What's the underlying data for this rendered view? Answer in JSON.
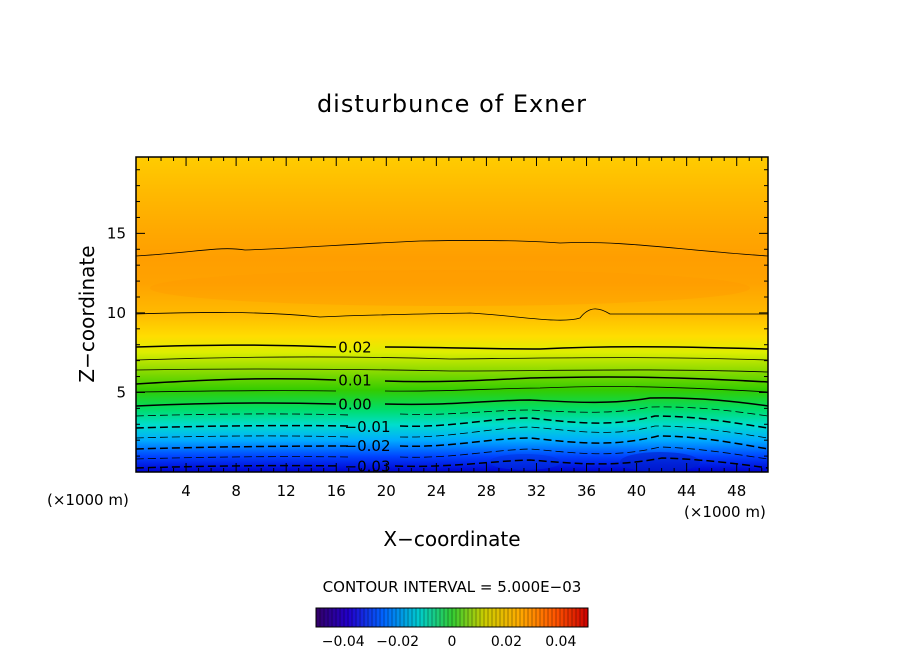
{
  "chart_data": {
    "type": "heatmap",
    "title": "disturbunce of Exner",
    "xlabel": "X−coordinate",
    "ylabel": "Z−coordinate",
    "x_unit_left": "(×1000 m)",
    "x_unit_right": "(×1000 m)",
    "xlim": [
      0,
      50.5
    ],
    "ylim": [
      0,
      19.8
    ],
    "x_ticks": [
      4,
      8,
      12,
      16,
      20,
      24,
      28,
      32,
      36,
      40,
      44,
      48
    ],
    "y_ticks": [
      5,
      10,
      15
    ],
    "contour_interval_label": "CONTOUR INTERVAL = 5.000E−03",
    "contour_labels": [
      {
        "text": "0.02",
        "x": 17.5,
        "z": 7.9
      },
      {
        "text": "0.01",
        "x": 17.5,
        "z": 5.8
      },
      {
        "text": "0.00",
        "x": 17.5,
        "z": 4.3
      },
      {
        "text": "−0.01",
        "x": 18.5,
        "z": 2.9
      },
      {
        "text": "−0.02",
        "x": 18.5,
        "z": 1.7
      },
      {
        "text": "−0.03",
        "x": 18.5,
        "z": 0.4
      }
    ],
    "colorbar": {
      "ticks": [
        "−0.04",
        "−0.02",
        "0",
        "0.02",
        "0.04"
      ],
      "range": [
        -0.05,
        0.05
      ]
    },
    "field_profile": {
      "z": [
        0,
        1,
        2,
        3,
        4,
        5,
        6,
        7,
        8,
        9,
        10,
        11,
        12,
        13,
        14,
        15,
        16,
        17,
        18,
        19.8
      ],
      "value": [
        -0.035,
        -0.03,
        -0.022,
        -0.013,
        -0.004,
        0.005,
        0.013,
        0.02,
        0.025,
        0.028,
        0.03,
        0.032,
        0.034,
        0.032,
        0.031,
        0.03,
        0.029,
        0.027,
        0.026,
        0.024
      ]
    },
    "colors": {
      "low": "#0000cc",
      "mid_green": "#33cc00",
      "high_orange": "#ff9900",
      "top_yellow": "#ffcc00"
    }
  }
}
